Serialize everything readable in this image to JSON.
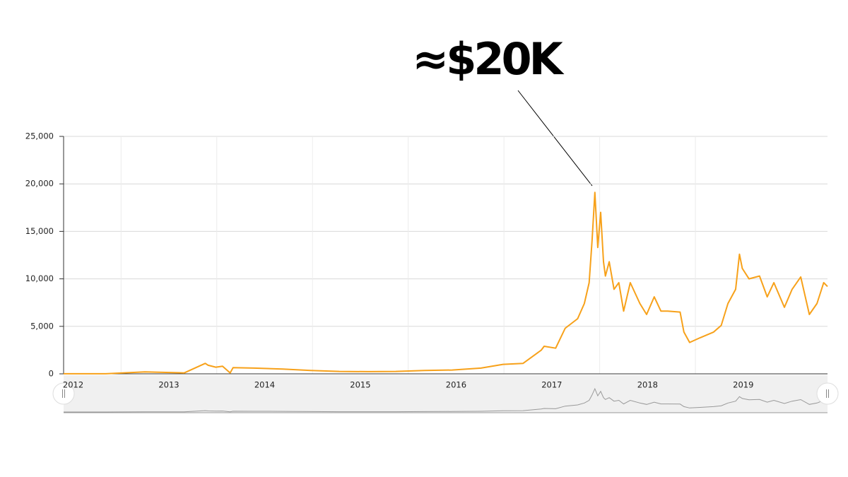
{
  "chart_data": {
    "type": "line",
    "annotation": "≈$20K",
    "x": [
      2012.4,
      2012.84,
      2013.25,
      2013.66,
      2013.88,
      2013.91,
      2013.99,
      2014.06,
      2014.14,
      2014.17,
      2014.39,
      2014.69,
      2014.98,
      2015.28,
      2015.58,
      2015.87,
      2016.17,
      2016.46,
      2016.76,
      2016.99,
      2017.2,
      2017.39,
      2017.42,
      2017.54,
      2017.64,
      2017.77,
      2017.84,
      2017.89,
      2017.92,
      2017.95,
      2017.98,
      2018.01,
      2018.04,
      2018.06,
      2018.1,
      2018.15,
      2018.2,
      2018.25,
      2018.32,
      2018.42,
      2018.49,
      2018.57,
      2018.64,
      2018.71,
      2018.84,
      2018.88,
      2018.94,
      2019.05,
      2019.19,
      2019.27,
      2019.34,
      2019.42,
      2019.46,
      2019.49,
      2019.56,
      2019.67,
      2019.75,
      2019.82,
      2019.93,
      2020.01,
      2020.1,
      2020.19,
      2020.27,
      2020.34,
      2020.38
    ],
    "series": [
      {
        "color": "#f7a11a",
        "values": [
          5,
          10,
          200,
          100,
          1100,
          900,
          700,
          800,
          100,
          650,
          600,
          500,
          350,
          250,
          230,
          250,
          350,
          400,
          600,
          1000,
          1100,
          2500,
          2900,
          2700,
          4800,
          5800,
          7400,
          9600,
          14000,
          19100,
          13300,
          17000,
          11800,
          10300,
          11800,
          8900,
          9600,
          6600,
          9600,
          7400,
          6250,
          8100,
          6600,
          6600,
          6500,
          4400,
          3300,
          3800,
          4400,
          5100,
          7400,
          8900,
          12600,
          11100,
          10000,
          10300,
          8100,
          9600,
          7000,
          8900,
          10200,
          6250,
          7400,
          9600,
          9200
        ]
      }
    ],
    "xlim": [
      2012.4,
      2020.38
    ],
    "xticks": [
      {
        "value": 2012.5,
        "label": "2012"
      },
      {
        "value": 2013.5,
        "label": "2013"
      },
      {
        "value": 2014.5,
        "label": "2014"
      },
      {
        "value": 2015.5,
        "label": "2015"
      },
      {
        "value": 2016.5,
        "label": "2016"
      },
      {
        "value": 2017.5,
        "label": "2017"
      },
      {
        "value": 2018.5,
        "label": "2018"
      },
      {
        "value": 2019.5,
        "label": "2019"
      }
    ],
    "ylim": [
      0,
      25000
    ],
    "yticks": [
      0,
      {
        "value": 5000,
        "label": "5,000"
      },
      {
        "value": 10000,
        "label": "10,000"
      },
      {
        "value": 15000,
        "label": "15,000"
      },
      {
        "value": 20000,
        "label": "20,000"
      },
      {
        "value": 25000,
        "label": "25,000"
      }
    ],
    "grid": true,
    "navigator": true
  }
}
